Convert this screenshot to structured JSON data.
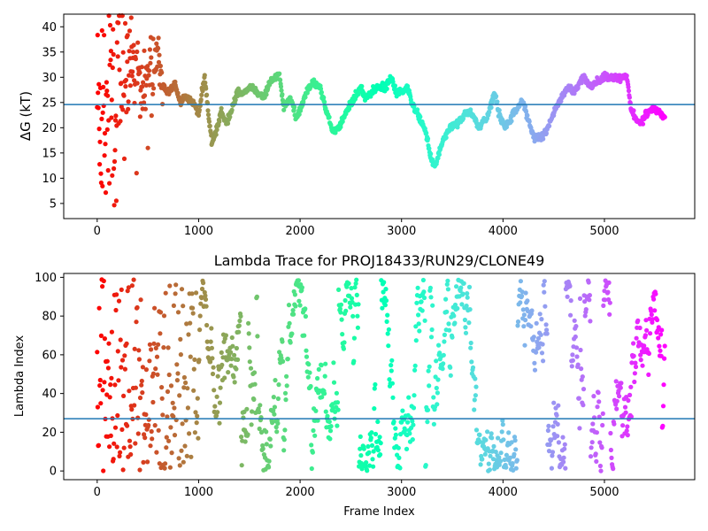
{
  "chart_data": [
    {
      "type": "scatter",
      "title": "",
      "xlabel": "",
      "ylabel": "ΔG (kT)",
      "xlim": [
        -330,
        5890
      ],
      "ylim": [
        2.0,
        42.5
      ],
      "xticks": [
        0,
        1000,
        2000,
        3000,
        4000,
        5000
      ],
      "yticks": [
        5,
        10,
        15,
        20,
        25,
        30,
        35,
        40
      ],
      "hline": 24.6,
      "hline_color": "#1f77b4",
      "colormap": "rainbow (red at frame 0 to violet at last frame)",
      "n_frames": 5600,
      "trace_keypoints": {
        "x": [
          120,
          180,
          260,
          350,
          450,
          520,
          600,
          650,
          700,
          760,
          820,
          880,
          940,
          1000,
          1060,
          1100,
          1130,
          1170,
          1220,
          1280,
          1330,
          1380,
          1450,
          1520,
          1580,
          1640,
          1700,
          1760,
          1790,
          1840,
          1900,
          1960,
          2010,
          2060,
          2120,
          2200,
          2280,
          2320,
          2380,
          2430,
          2480,
          2540,
          2600,
          2640,
          2700,
          2760,
          2840,
          2900,
          2950,
          3000,
          3060,
          3120,
          3180,
          3240,
          3290,
          3330,
          3370,
          3420,
          3480,
          3560,
          3640,
          3690,
          3760,
          3840,
          3920,
          3950,
          3980,
          4020,
          4080,
          4140,
          4200,
          4260,
          4310,
          4380,
          4440,
          4520,
          4580,
          4640,
          4700,
          4760,
          4800,
          4860,
          4920,
          5000,
          5080,
          5160,
          5220,
          5260,
          5300,
          5360,
          5420,
          5480,
          5540,
          5600
        ],
        "y": [
          30,
          28,
          32,
          31,
          29,
          30,
          33,
          28,
          27,
          29,
          25,
          26,
          25,
          23,
          30,
          22,
          17,
          19,
          23,
          21,
          24,
          27,
          27,
          28,
          27,
          26,
          29,
          30,
          31,
          24,
          26,
          22,
          24,
          27,
          29,
          28,
          22,
          19,
          20,
          22,
          24,
          26,
          28,
          26,
          27,
          28,
          28,
          30,
          27,
          27,
          28,
          24,
          22,
          19,
          14,
          12,
          15,
          18,
          20,
          21,
          23,
          23,
          20,
          22,
          27,
          24,
          22,
          20,
          22,
          24,
          25,
          21,
          18,
          18,
          20,
          24,
          26,
          28,
          27,
          29,
          30,
          28,
          29,
          30,
          30,
          30,
          30,
          24,
          22,
          21,
          23,
          24,
          23,
          22
        ]
      },
      "early_scatter_y_range": [
        3.5,
        42
      ]
    },
    {
      "type": "scatter",
      "title": "Lambda Trace for PROJ18433/RUN29/CLONE49",
      "xlabel": "Frame Index",
      "ylabel": "Lambda Index",
      "xlim": [
        -330,
        5890
      ],
      "ylim": [
        -4.5,
        102
      ],
      "xticks": [
        0,
        1000,
        2000,
        3000,
        4000,
        5000
      ],
      "yticks": [
        0,
        20,
        40,
        60,
        80,
        100
      ],
      "hline": 27,
      "hline_color": "#1f77b4",
      "colormap": "rainbow (red at frame 0 to violet at last frame)",
      "n_frames": 5600,
      "y_range": [
        0,
        99
      ],
      "marker_size": 3
    }
  ]
}
